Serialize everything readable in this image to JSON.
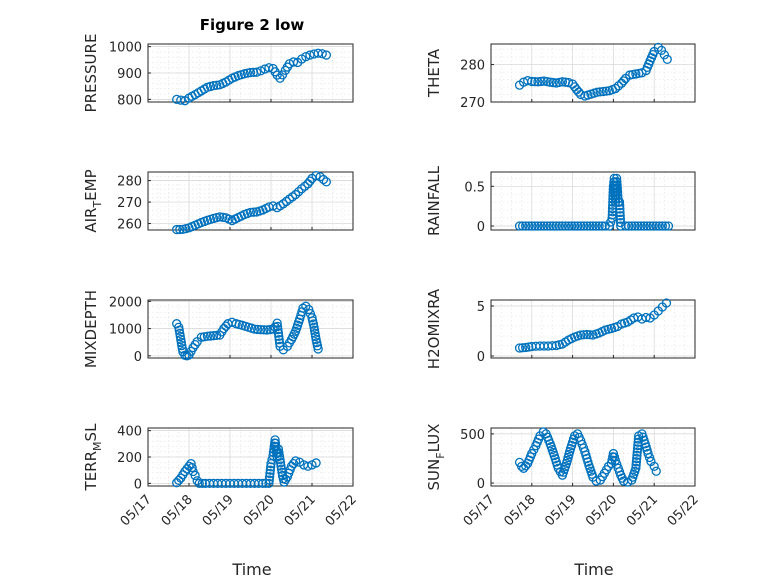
{
  "chart_data": [
    {
      "id": "pressure",
      "type": "scatter",
      "title": "Figure 2 low",
      "ylabel": "PRESSURE",
      "ylim": [
        790,
        1010
      ],
      "yticks": [
        800,
        900,
        1000
      ],
      "x": [
        "05/17",
        "05/18",
        "05/19",
        "05/20",
        "05/21",
        "05/22"
      ],
      "points": [
        [
          17.7,
          800
        ],
        [
          17.8,
          797
        ],
        [
          17.9,
          795
        ],
        [
          18.0,
          805
        ],
        [
          18.15,
          818
        ],
        [
          18.3,
          832
        ],
        [
          18.45,
          846
        ],
        [
          18.6,
          852
        ],
        [
          18.75,
          855
        ],
        [
          18.9,
          866
        ],
        [
          19.05,
          880
        ],
        [
          19.2,
          890
        ],
        [
          19.35,
          897
        ],
        [
          19.5,
          902
        ],
        [
          19.65,
          903
        ],
        [
          19.75,
          908
        ],
        [
          19.85,
          915
        ],
        [
          19.95,
          920
        ],
        [
          20.05,
          917
        ],
        [
          20.15,
          892
        ],
        [
          20.22,
          880
        ],
        [
          20.28,
          893
        ],
        [
          20.35,
          910
        ],
        [
          20.45,
          935
        ],
        [
          20.55,
          942
        ],
        [
          20.65,
          940
        ],
        [
          20.75,
          953
        ],
        [
          20.85,
          962
        ],
        [
          20.95,
          968
        ],
        [
          21.05,
          972
        ],
        [
          21.15,
          975
        ],
        [
          21.25,
          973
        ],
        [
          21.35,
          968
        ]
      ]
    },
    {
      "id": "theta",
      "type": "scatter",
      "ylabel": "THETA",
      "ylim": [
        270,
        285.5
      ],
      "yticks": [
        270,
        280
      ],
      "points": [
        [
          17.7,
          274.5
        ],
        [
          17.8,
          275.3
        ],
        [
          17.9,
          275.7
        ],
        [
          18.0,
          275.5
        ],
        [
          18.15,
          275.4
        ],
        [
          18.3,
          275.6
        ],
        [
          18.45,
          275.3
        ],
        [
          18.6,
          275.1
        ],
        [
          18.75,
          275.4
        ],
        [
          18.9,
          275.2
        ],
        [
          19.0,
          274.8
        ],
        [
          19.1,
          273.3
        ],
        [
          19.2,
          272.0
        ],
        [
          19.3,
          271.6
        ],
        [
          19.45,
          272.1
        ],
        [
          19.6,
          272.6
        ],
        [
          19.75,
          272.8
        ],
        [
          19.9,
          273.0
        ],
        [
          20.05,
          273.6
        ],
        [
          20.2,
          275.0
        ],
        [
          20.3,
          276.3
        ],
        [
          20.4,
          277.2
        ],
        [
          20.55,
          277.5
        ],
        [
          20.7,
          277.8
        ],
        [
          20.8,
          278.4
        ],
        [
          20.9,
          281.0
        ],
        [
          21.0,
          283.5
        ],
        [
          21.1,
          284.6
        ],
        [
          21.18,
          283.8
        ],
        [
          21.25,
          282.6
        ],
        [
          21.32,
          281.4
        ]
      ]
    },
    {
      "id": "airtemp",
      "type": "scatter",
      "ylabel": "AIR_TEMP",
      "ylim": [
        257,
        284
      ],
      "yticks": [
        260,
        270,
        280
      ],
      "points": [
        [
          17.7,
          257.2
        ],
        [
          17.85,
          257.3
        ],
        [
          18.0,
          258.0
        ],
        [
          18.15,
          259.2
        ],
        [
          18.3,
          260.5
        ],
        [
          18.45,
          261.5
        ],
        [
          18.6,
          262.4
        ],
        [
          18.75,
          263.1
        ],
        [
          18.9,
          262.7
        ],
        [
          19.05,
          261.4
        ],
        [
          19.2,
          262.8
        ],
        [
          19.35,
          264.2
        ],
        [
          19.5,
          265.2
        ],
        [
          19.65,
          265.4
        ],
        [
          19.8,
          266.3
        ],
        [
          19.95,
          267.7
        ],
        [
          20.05,
          268.2
        ],
        [
          20.15,
          267.4
        ],
        [
          20.3,
          269.2
        ],
        [
          20.45,
          271.4
        ],
        [
          20.6,
          273.5
        ],
        [
          20.75,
          276.2
        ],
        [
          20.9,
          278.5
        ],
        [
          21.0,
          281.0
        ],
        [
          21.1,
          282.3
        ],
        [
          21.2,
          281.8
        ],
        [
          21.28,
          280.5
        ],
        [
          21.35,
          279.4
        ]
      ]
    },
    {
      "id": "rainfall",
      "type": "scatter",
      "ylabel": "RAINFALL",
      "ylim": [
        -0.05,
        0.68
      ],
      "yticks": [
        0,
        0.5
      ],
      "points": [
        [
          17.7,
          0
        ],
        [
          17.85,
          0
        ],
        [
          18.0,
          0
        ],
        [
          18.15,
          0
        ],
        [
          18.3,
          0
        ],
        [
          18.45,
          0
        ],
        [
          18.6,
          0
        ],
        [
          18.75,
          0
        ],
        [
          18.9,
          0
        ],
        [
          19.05,
          0
        ],
        [
          19.2,
          0
        ],
        [
          19.35,
          0
        ],
        [
          19.5,
          0
        ],
        [
          19.65,
          0
        ],
        [
          19.8,
          0
        ],
        [
          19.9,
          0
        ],
        [
          19.97,
          0.1
        ],
        [
          20.0,
          0.5
        ],
        [
          20.02,
          0.6
        ],
        [
          20.05,
          0.3
        ],
        [
          20.08,
          0.6
        ],
        [
          20.12,
          0.3
        ],
        [
          20.15,
          0.3
        ],
        [
          20.18,
          0
        ],
        [
          20.3,
          0
        ],
        [
          20.45,
          0
        ],
        [
          20.6,
          0
        ],
        [
          20.75,
          0
        ],
        [
          20.9,
          0
        ],
        [
          21.05,
          0
        ],
        [
          21.2,
          0
        ],
        [
          21.35,
          0
        ]
      ]
    },
    {
      "id": "mixdepth",
      "type": "scatter",
      "ylabel": "MIXDEPTH",
      "ylim": [
        -80,
        2050
      ],
      "yticks": [
        0,
        1000,
        2000
      ],
      "points": [
        [
          17.7,
          1180
        ],
        [
          17.75,
          1050
        ],
        [
          17.8,
          600
        ],
        [
          17.85,
          150
        ],
        [
          17.9,
          20
        ],
        [
          17.95,
          0
        ],
        [
          18.0,
          30
        ],
        [
          18.1,
          300
        ],
        [
          18.2,
          520
        ],
        [
          18.3,
          680
        ],
        [
          18.45,
          720
        ],
        [
          18.6,
          740
        ],
        [
          18.75,
          760
        ],
        [
          18.85,
          1000
        ],
        [
          18.95,
          1180
        ],
        [
          19.05,
          1230
        ],
        [
          19.15,
          1180
        ],
        [
          19.3,
          1120
        ],
        [
          19.45,
          1050
        ],
        [
          19.6,
          980
        ],
        [
          19.75,
          960
        ],
        [
          19.9,
          950
        ],
        [
          20.05,
          980
        ],
        [
          20.1,
          1060
        ],
        [
          20.15,
          1200
        ],
        [
          20.22,
          350
        ],
        [
          20.3,
          220
        ],
        [
          20.4,
          350
        ],
        [
          20.5,
          600
        ],
        [
          20.6,
          900
        ],
        [
          20.7,
          1350
        ],
        [
          20.78,
          1750
        ],
        [
          20.85,
          1820
        ],
        [
          20.92,
          1700
        ],
        [
          21.0,
          1400
        ],
        [
          21.05,
          1050
        ],
        [
          21.1,
          600
        ],
        [
          21.15,
          250
        ]
      ]
    },
    {
      "id": "h2omixra",
      "type": "scatter",
      "ylabel": "H2OMIXRA",
      "ylim": [
        -0.2,
        5.6
      ],
      "yticks": [
        0,
        5
      ],
      "points": [
        [
          17.7,
          0.8
        ],
        [
          17.85,
          0.85
        ],
        [
          18.0,
          0.95
        ],
        [
          18.2,
          1.0
        ],
        [
          18.4,
          1.0
        ],
        [
          18.6,
          1.05
        ],
        [
          18.75,
          1.2
        ],
        [
          18.9,
          1.6
        ],
        [
          19.05,
          1.9
        ],
        [
          19.2,
          2.1
        ],
        [
          19.35,
          2.15
        ],
        [
          19.5,
          2.1
        ],
        [
          19.65,
          2.3
        ],
        [
          19.8,
          2.6
        ],
        [
          19.95,
          2.75
        ],
        [
          20.1,
          2.95
        ],
        [
          20.2,
          3.2
        ],
        [
          20.35,
          3.4
        ],
        [
          20.5,
          3.8
        ],
        [
          20.6,
          3.9
        ],
        [
          20.7,
          3.7
        ],
        [
          20.8,
          3.85
        ],
        [
          20.9,
          3.8
        ],
        [
          21.0,
          4.1
        ],
        [
          21.1,
          4.5
        ],
        [
          21.2,
          4.9
        ],
        [
          21.3,
          5.3
        ]
      ]
    },
    {
      "id": "terrmsl",
      "type": "scatter",
      "ylabel": "TERR_MSL",
      "ylim": [
        -20,
        420
      ],
      "yticks": [
        0,
        200,
        400
      ],
      "points": [
        [
          17.7,
          5
        ],
        [
          17.8,
          40
        ],
        [
          17.9,
          90
        ],
        [
          18.0,
          130
        ],
        [
          18.05,
          150
        ],
        [
          18.1,
          90
        ],
        [
          18.15,
          60
        ],
        [
          18.2,
          20
        ],
        [
          18.25,
          0
        ],
        [
          18.4,
          0
        ],
        [
          18.6,
          0
        ],
        [
          18.8,
          0
        ],
        [
          19.0,
          0
        ],
        [
          19.2,
          0
        ],
        [
          19.4,
          0
        ],
        [
          19.6,
          0
        ],
        [
          19.8,
          0
        ],
        [
          19.95,
          0
        ],
        [
          20.0,
          150
        ],
        [
          20.05,
          210
        ],
        [
          20.1,
          330
        ],
        [
          20.15,
          200
        ],
        [
          20.18,
          260
        ],
        [
          20.22,
          180
        ],
        [
          20.28,
          60
        ],
        [
          20.32,
          10
        ],
        [
          20.4,
          50
        ],
        [
          20.5,
          130
        ],
        [
          20.6,
          170
        ],
        [
          20.7,
          160
        ],
        [
          20.8,
          140
        ],
        [
          20.9,
          130
        ],
        [
          21.0,
          140
        ],
        [
          21.1,
          155
        ]
      ]
    },
    {
      "id": "sunflux",
      "type": "scatter",
      "ylabel": "SUN_FLUX",
      "ylim": [
        -30,
        560
      ],
      "yticks": [
        0,
        500
      ],
      "points": [
        [
          17.7,
          210
        ],
        [
          17.75,
          170
        ],
        [
          17.8,
          150
        ],
        [
          17.9,
          200
        ],
        [
          18.0,
          300
        ],
        [
          18.1,
          380
        ],
        [
          18.2,
          480
        ],
        [
          18.28,
          520
        ],
        [
          18.35,
          500
        ],
        [
          18.45,
          400
        ],
        [
          18.55,
          280
        ],
        [
          18.65,
          150
        ],
        [
          18.75,
          80
        ],
        [
          18.85,
          200
        ],
        [
          18.95,
          350
        ],
        [
          19.05,
          480
        ],
        [
          19.12,
          500
        ],
        [
          19.2,
          430
        ],
        [
          19.3,
          320
        ],
        [
          19.4,
          180
        ],
        [
          19.5,
          60
        ],
        [
          19.58,
          20
        ],
        [
          19.68,
          30
        ],
        [
          19.78,
          100
        ],
        [
          19.88,
          170
        ],
        [
          19.95,
          200
        ],
        [
          20.0,
          300
        ],
        [
          20.05,
          230
        ],
        [
          20.12,
          150
        ],
        [
          20.18,
          80
        ],
        [
          20.25,
          20
        ],
        [
          20.35,
          10
        ],
        [
          20.45,
          30
        ],
        [
          20.55,
          150
        ],
        [
          20.62,
          480
        ],
        [
          20.7,
          500
        ],
        [
          20.78,
          400
        ],
        [
          20.85,
          300
        ],
        [
          20.92,
          220
        ],
        [
          21.0,
          170
        ],
        [
          21.05,
          120
        ]
      ]
    }
  ],
  "xaxis": {
    "label": "Time",
    "ticks": [
      "05/17",
      "05/18",
      "05/19",
      "05/20",
      "05/21",
      "05/22"
    ]
  },
  "ylabel_parts": {
    "airtemp": [
      "AIR",
      "T",
      "EMP"
    ],
    "terrmsl": [
      "TERR",
      "M",
      "SL"
    ],
    "sunflux": [
      "SUN",
      "F",
      "LUX"
    ]
  },
  "colors": {
    "marker": "#0072bd",
    "axis": "#262626",
    "grid": "#d6d6d6"
  }
}
